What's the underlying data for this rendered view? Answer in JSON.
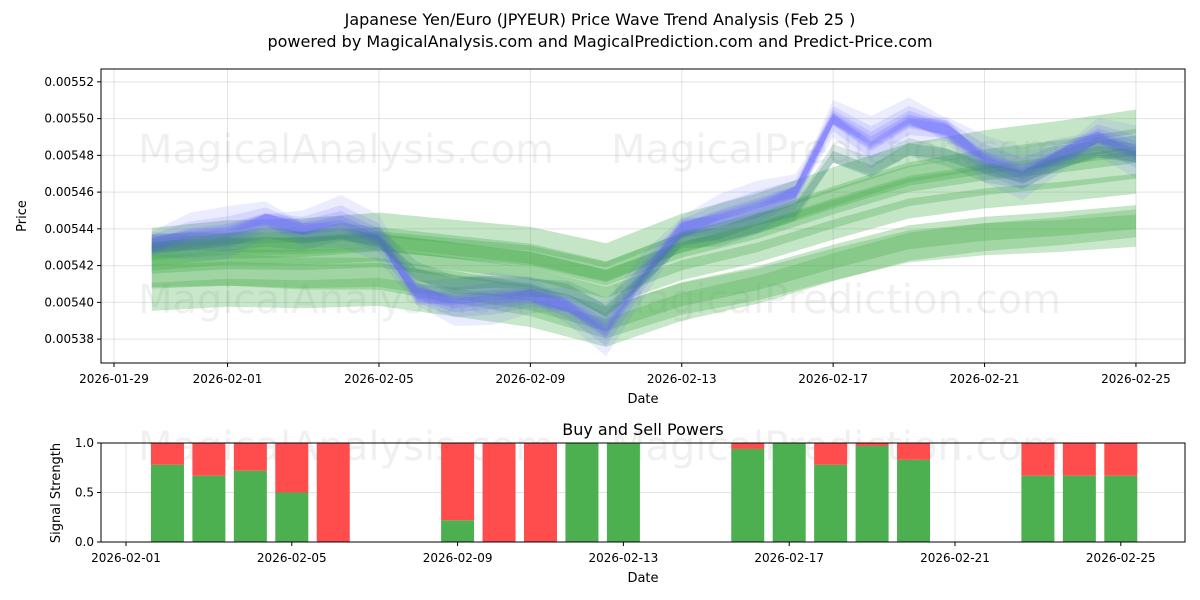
{
  "title_line1": "Japanese Yen/Euro (JPYEUR) Price Wave Trend Analysis (Feb 25 )",
  "title_line2": "powered by MagicalAnalysis.com and MagicalPrediction.com and Predict-Price.com",
  "watermarks": [
    "MagicalAnalysis.com",
    "MagicalPrediction.com"
  ],
  "chart_data": [
    {
      "type": "area",
      "title": "",
      "xlabel": "Date",
      "ylabel": "Price",
      "x_range": [
        "2026-01-29",
        "2026-02-25"
      ],
      "ylim": [
        0.005367,
        0.005527
      ],
      "yticks": [
        "0.00538",
        "0.00540",
        "0.00542",
        "0.00544",
        "0.00546",
        "0.00548",
        "0.00550",
        "0.00552"
      ],
      "xticks": [
        "2026-01-29",
        "2026-02-01",
        "2026-02-05",
        "2026-02-09",
        "2026-02-13",
        "2026-02-17",
        "2026-02-21",
        "2026-02-25"
      ],
      "grid": true,
      "blue_series": {
        "name": "price wave (blue)",
        "color": "#6666ff",
        "dates": [
          "2026-01-30",
          "2026-01-31",
          "2026-02-01",
          "2026-02-02",
          "2026-02-03",
          "2026-02-04",
          "2026-02-05",
          "2026-02-06",
          "2026-02-07",
          "2026-02-08",
          "2026-02-09",
          "2026-02-10",
          "2026-02-11",
          "2026-02-12",
          "2026-02-13",
          "2026-02-14",
          "2026-02-15",
          "2026-02-16",
          "2026-02-17",
          "2026-02-18",
          "2026-02-19",
          "2026-02-20",
          "2026-02-21",
          "2026-02-22",
          "2026-02-23",
          "2026-02-24",
          "2026-02-25"
        ],
        "values": [
          0.005432,
          0.005436,
          0.005438,
          0.005445,
          0.00544,
          0.005444,
          0.005435,
          0.005405,
          0.0054,
          0.005402,
          0.005404,
          0.005398,
          0.005385,
          0.005415,
          0.00544,
          0.005446,
          0.005452,
          0.00546,
          0.0055,
          0.005487,
          0.005499,
          0.005494,
          0.005478,
          0.00547,
          0.00548,
          0.00549,
          0.005482
        ]
      },
      "green_series": {
        "name": "trend wave (green)",
        "color": "#4caf50",
        "dates": [
          "2026-01-30",
          "2026-02-01",
          "2026-02-03",
          "2026-02-05",
          "2026-02-07",
          "2026-02-09",
          "2026-02-11",
          "2026-02-13",
          "2026-02-15",
          "2026-02-17",
          "2026-02-19",
          "2026-02-21",
          "2026-02-23",
          "2026-02-25"
        ],
        "values": [
          0.005425,
          0.005428,
          0.005428,
          0.00543,
          0.005425,
          0.00542,
          0.00541,
          0.005425,
          0.005435,
          0.005448,
          0.00546,
          0.005466,
          0.00547,
          0.005475
        ]
      }
    },
    {
      "type": "bar",
      "title": "Buy and Sell Powers",
      "xlabel": "Date",
      "ylabel": "Signal Strength",
      "ylim": [
        0,
        1
      ],
      "yticks": [
        "0.0",
        "0.5",
        "1.0"
      ],
      "xticks": [
        "2026-02-01",
        "2026-02-05",
        "2026-02-09",
        "2026-02-13",
        "2026-02-17",
        "2026-02-21",
        "2026-02-25"
      ],
      "buy_color": "#4caf50",
      "sell_color": "#ff4c4c",
      "dates": [
        "2026-02-02",
        "2026-02-03",
        "2026-02-04",
        "2026-02-05",
        "2026-02-06",
        "2026-02-09",
        "2026-02-10",
        "2026-02-11",
        "2026-02-12",
        "2026-02-13",
        "2026-02-16",
        "2026-02-17",
        "2026-02-18",
        "2026-02-19",
        "2026-02-20",
        "2026-02-23",
        "2026-02-24",
        "2026-02-25"
      ],
      "buy": [
        0.78,
        0.67,
        0.72,
        0.5,
        0.0,
        0.22,
        0.0,
        0.0,
        1.0,
        1.0,
        0.94,
        1.0,
        0.78,
        0.97,
        0.83,
        0.67,
        0.67,
        0.67
      ],
      "sell": [
        0.22,
        0.33,
        0.28,
        0.5,
        1.0,
        0.78,
        1.0,
        1.0,
        0.0,
        0.0,
        0.06,
        0.0,
        0.22,
        0.03,
        0.17,
        0.33,
        0.33,
        0.33
      ]
    }
  ]
}
